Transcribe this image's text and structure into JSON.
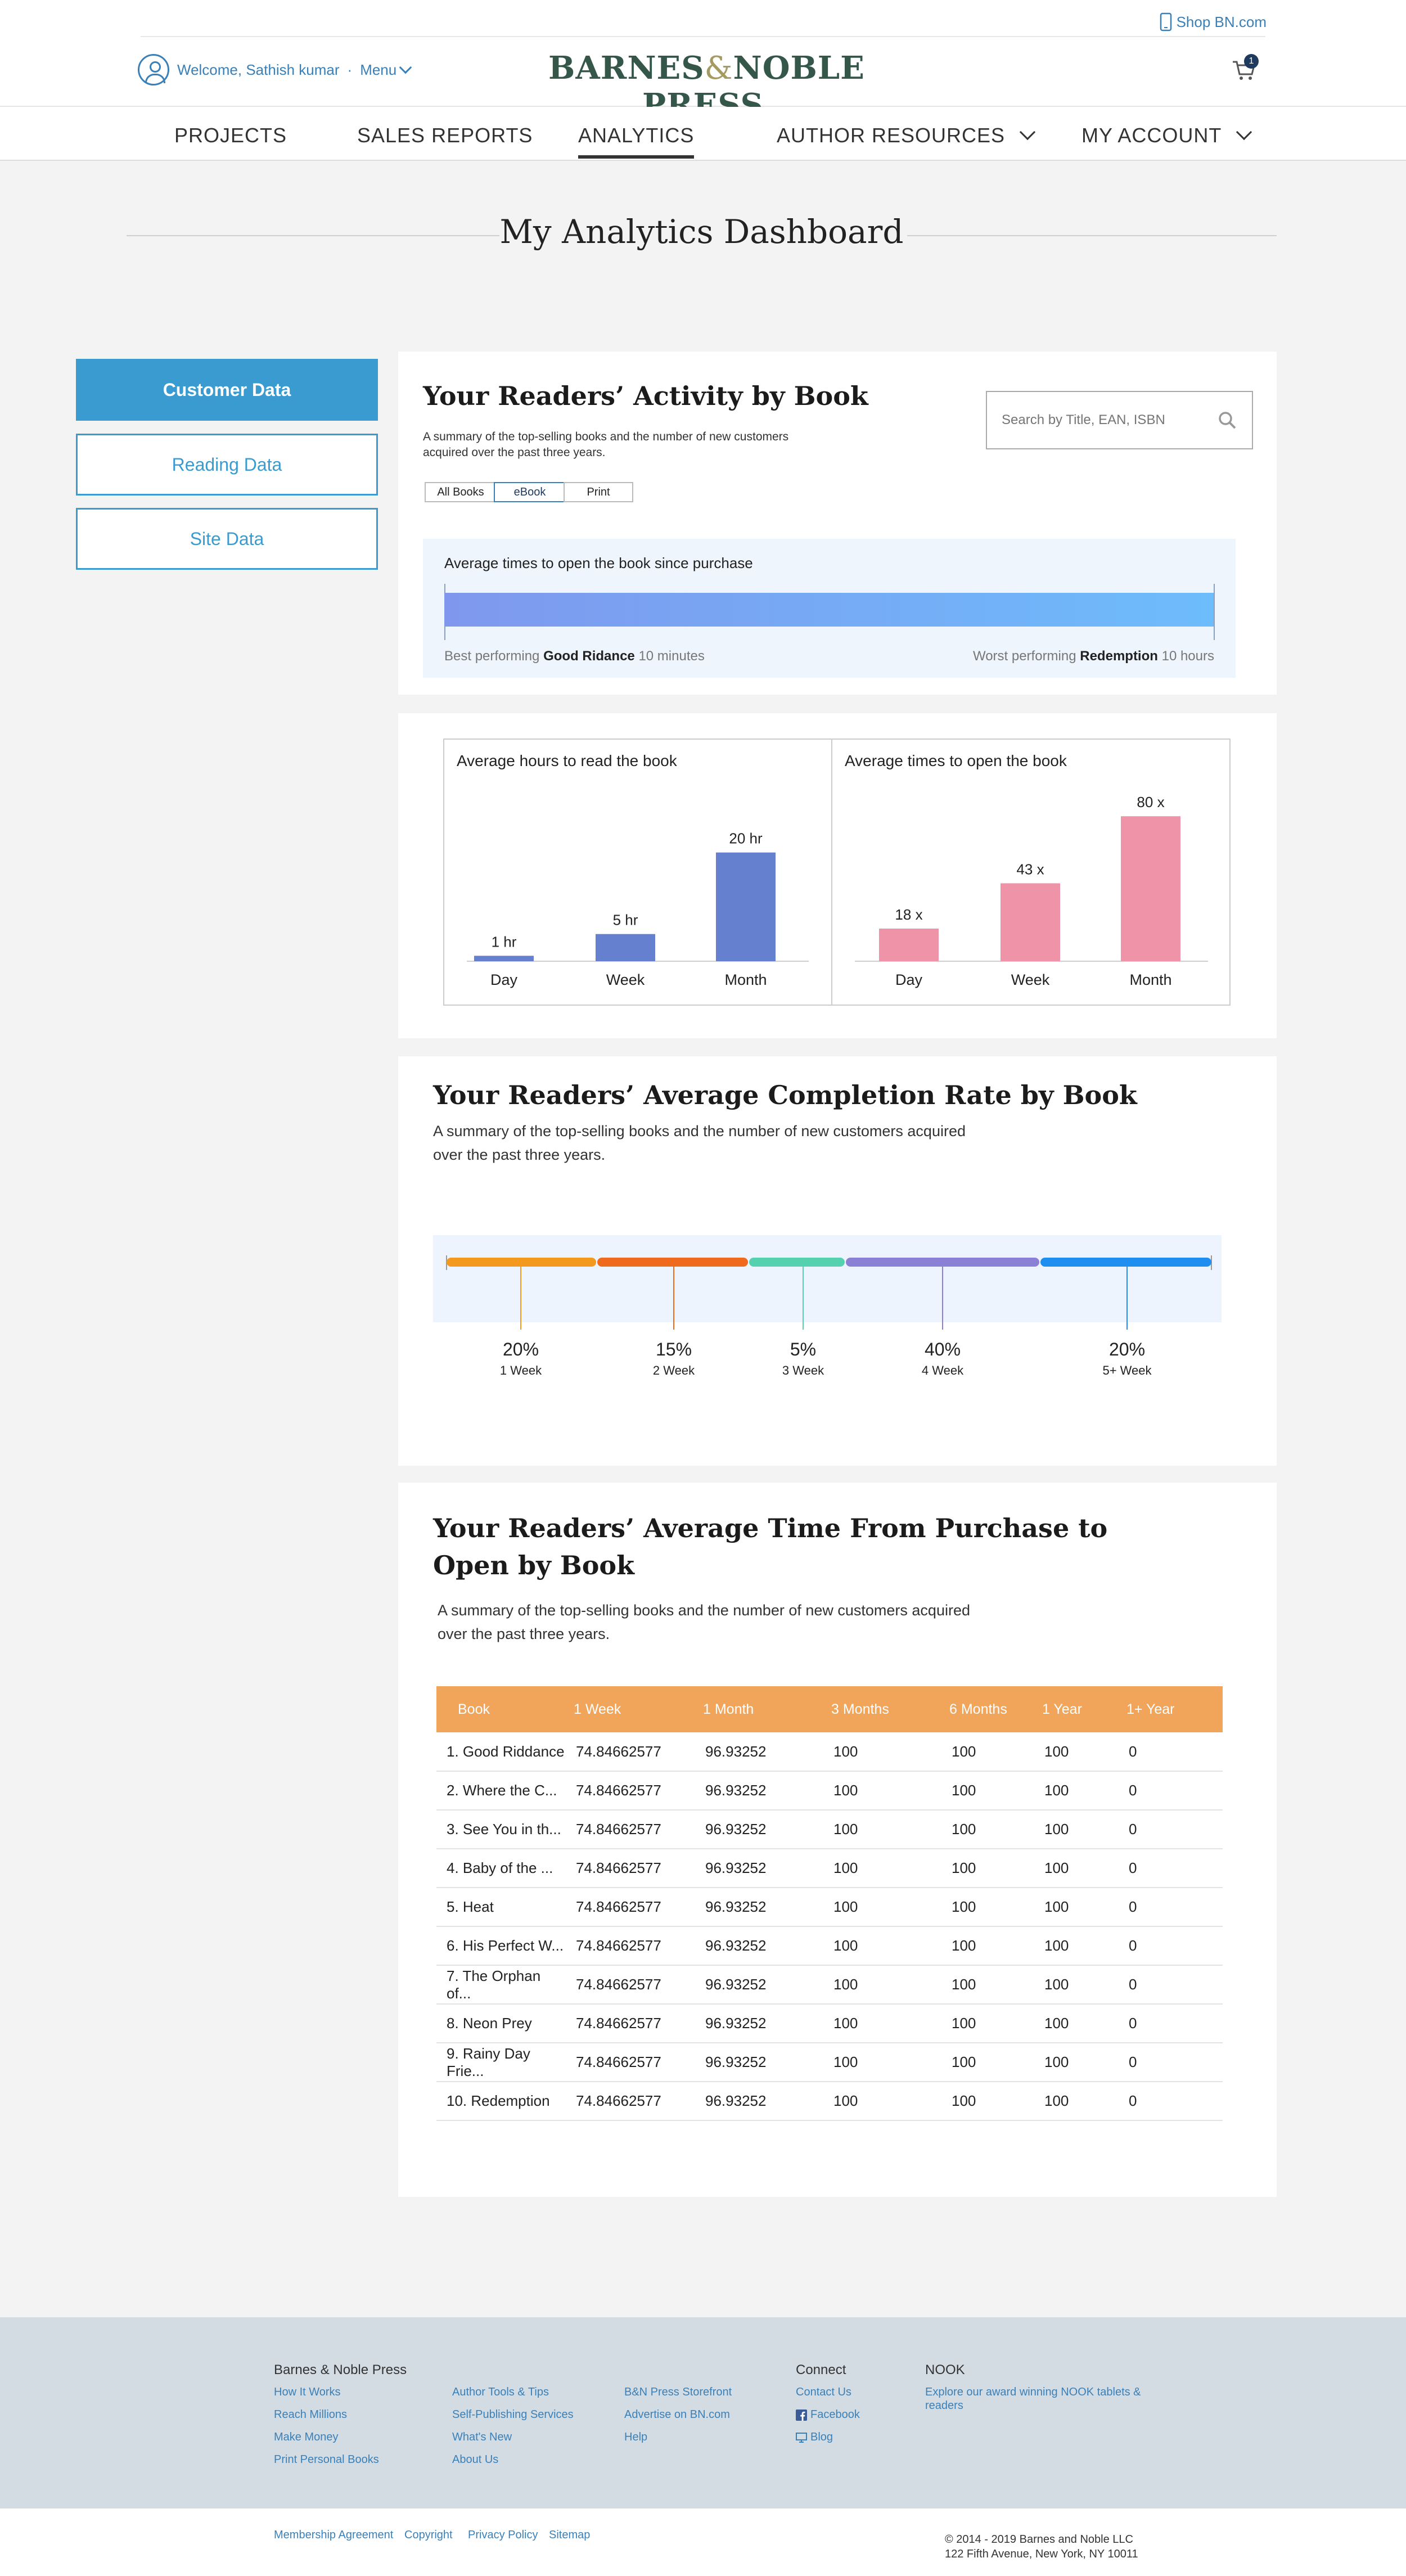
{
  "header": {
    "shop_link": "Shop BN.com",
    "welcome": "Welcome, Sathish kumar",
    "separator": "·",
    "menu_label": "Menu",
    "logo_part1": "BARNES",
    "logo_amp": "&",
    "logo_part2": "NOBLE PRESS",
    "cart_count": "1"
  },
  "nav": {
    "items": [
      {
        "label": "PROJECTS"
      },
      {
        "label": "SALES REPORTS"
      },
      {
        "label": "ANALYTICS"
      },
      {
        "label": "AUTHOR RESOURCES"
      },
      {
        "label": "MY ACCOUNT"
      }
    ],
    "active": "ANALYTICS"
  },
  "page_title": "My Analytics Dashboard",
  "sidebar": {
    "items": [
      {
        "label": "Customer Data"
      },
      {
        "label": "Reading Data"
      },
      {
        "label": "Site Data"
      }
    ],
    "active": "Customer Data"
  },
  "activity": {
    "title": "Your Readers’ Activity by Book",
    "subtitle_line1": "A summary of the top-selling books and the number of new customers",
    "subtitle_line2": "acquired over the past three years.",
    "search_placeholder": "Search by Title, EAN, ISBN",
    "filters": [
      "All Books",
      "eBook",
      "Print"
    ],
    "active_filter": "eBook",
    "open_label": "Average times to open the book since purchase",
    "best_prefix": "Best performing",
    "best_book": "Good Ridance",
    "best_value": "10 minutes",
    "worst_prefix": "Worst performing",
    "worst_book": "Redemption",
    "worst_value": "10 hours",
    "bar_colors": [
      "#7f98ee",
      "#6dbcfb"
    ]
  },
  "chart_data": [
    {
      "type": "bar",
      "title": "Average hours to read the book",
      "categories": [
        "Day",
        "Week",
        "Month"
      ],
      "values": [
        1,
        5,
        20
      ],
      "data_labels": [
        "1 hr",
        "5 hr",
        "20 hr"
      ],
      "ylim": [
        0,
        30
      ],
      "color": "#6680d0"
    },
    {
      "type": "bar",
      "title": "Average times to open the book",
      "categories": [
        "Day",
        "Week",
        "Month"
      ],
      "values": [
        18,
        43,
        80
      ],
      "data_labels": [
        "18 x",
        "43 x",
        "80 x"
      ],
      "ylim": [
        0,
        90
      ],
      "color": "#ee93a8"
    }
  ],
  "completion": {
    "title": "Your Readers’ Average Completion Rate by Book",
    "subtitle_line1": "A summary of the top-selling books and the number of new customers acquired",
    "subtitle_line2": "over the past three years.",
    "segments": [
      {
        "percent": "20%",
        "label": "1 Week",
        "color": "#f39a1e"
      },
      {
        "percent": "15%",
        "label": "2 Week",
        "color": "#ef6a1c"
      },
      {
        "percent": "5%",
        "label": "3 Week",
        "color": "#55d1b0"
      },
      {
        "percent": "40%",
        "label": "4 Week",
        "color": "#8a80d6"
      },
      {
        "percent": "20%",
        "label": "5+ Week",
        "color": "#1e8ef0"
      }
    ]
  },
  "time_to_open": {
    "title_line1": "Your Readers’ Average Time From Purchase to",
    "title_line2": "Open by Book",
    "subtitle_line1": "A summary of the top-selling books and the number of new customers acquired",
    "subtitle_line2": "over the past three years.",
    "columns": [
      "Book",
      "1  Week",
      "1  Month",
      "3 Months",
      "6 Months",
      "1 Year",
      "1+ Year"
    ],
    "rows": [
      [
        "1. Good Riddance",
        "74.84662577",
        "96.93252",
        "100",
        "100",
        "100",
        "0"
      ],
      [
        "2. Where the C...",
        "74.84662577",
        "96.93252",
        "100",
        "100",
        "100",
        "0"
      ],
      [
        "3. See You in th...",
        "74.84662577",
        "96.93252",
        "100",
        "100",
        "100",
        "0"
      ],
      [
        "4. Baby of the ...",
        "74.84662577",
        "96.93252",
        "100",
        "100",
        "100",
        "0"
      ],
      [
        "5. Heat",
        "74.84662577",
        "96.93252",
        "100",
        "100",
        "100",
        "0"
      ],
      [
        "6. His Perfect W...",
        "74.84662577",
        "96.93252",
        "100",
        "100",
        "100",
        "0"
      ],
      [
        "7. The Orphan of...",
        "74.84662577",
        "96.93252",
        "100",
        "100",
        "100",
        "0"
      ],
      [
        "8. Neon Prey",
        "74.84662577",
        "96.93252",
        "100",
        "100",
        "100",
        "0"
      ],
      [
        "9. Rainy Day Frie...",
        "74.84662577",
        "96.93252",
        "100",
        "100",
        "100",
        "0"
      ],
      [
        "10. Redemption",
        "74.84662577",
        "96.93252",
        "100",
        "100",
        "100",
        "0"
      ]
    ],
    "header_color": "#f0a55a"
  },
  "footer": {
    "col1_head": "Barnes & Noble Press",
    "col1": [
      "How It Works",
      "Reach Millions",
      "Make Money",
      "Print Personal Books"
    ],
    "col2": [
      "Author Tools & Tips",
      "Self-Publishing Services",
      "What's New",
      "About Us"
    ],
    "col3": [
      "B&N Press Storefront",
      "Advertise on BN.com",
      "Help"
    ],
    "connect_head": "Connect",
    "connect": [
      "Contact Us",
      "Facebook",
      "Blog"
    ],
    "nook_head": "NOOK",
    "nook_line1": "Explore our award winning NOOK tablets &",
    "nook_line2": "readers",
    "bottom_links": [
      "Membership Agreement",
      "Copyright",
      "Privacy Policy",
      "Sitemap"
    ],
    "copyright_line1": "© 2014 - 2019 Barnes and Noble LLC",
    "copyright_line2": "122 Fifth Avenue, New York, NY 10011"
  }
}
